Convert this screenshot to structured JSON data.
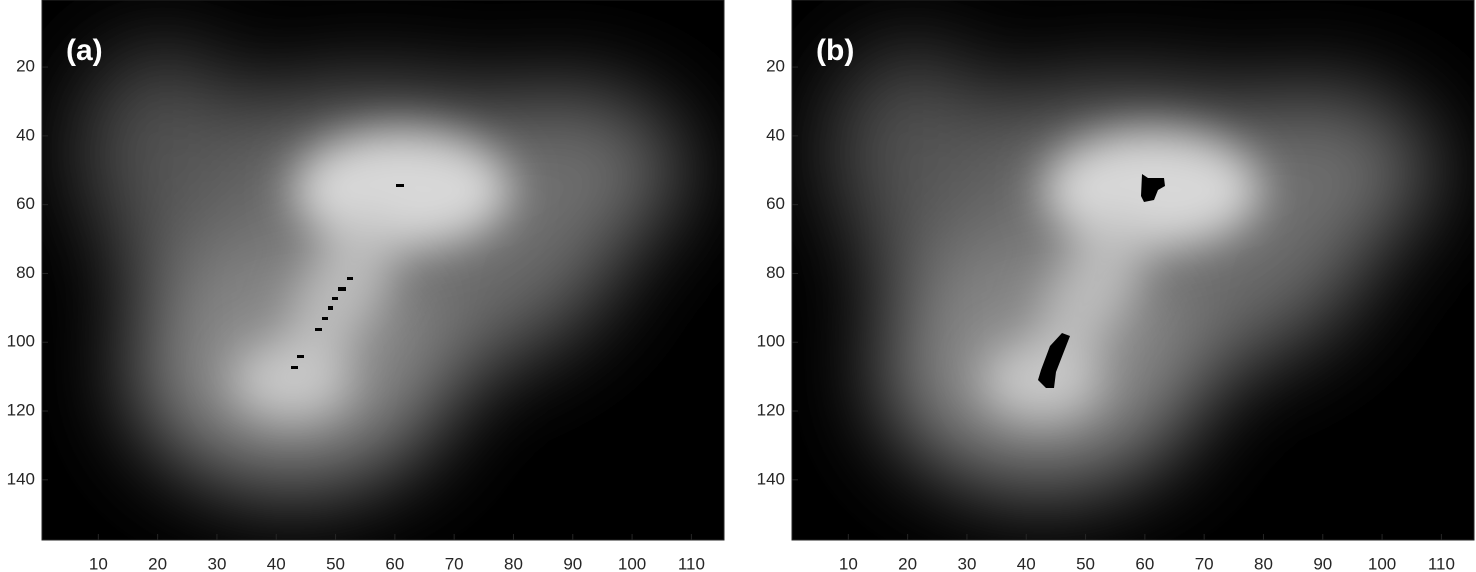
{
  "chart_data": [
    {
      "type": "image",
      "label": "(a)",
      "xlim": [
        0.5,
        115.5
      ],
      "ylim": [
        0.5,
        157.5
      ],
      "xticks": [
        10,
        20,
        30,
        40,
        50,
        60,
        70,
        80,
        90,
        100,
        110
      ],
      "yticks": [
        20,
        40,
        60,
        80,
        100,
        120,
        140
      ]
    },
    {
      "type": "image",
      "label": "(b)",
      "xlim": [
        0.5,
        115.5
      ],
      "ylim": [
        0.5,
        157.5
      ],
      "xticks": [
        10,
        20,
        30,
        40,
        50,
        60,
        70,
        80,
        90,
        100,
        110
      ],
      "yticks": [
        20,
        40,
        60,
        80,
        100,
        120,
        140
      ]
    }
  ]
}
